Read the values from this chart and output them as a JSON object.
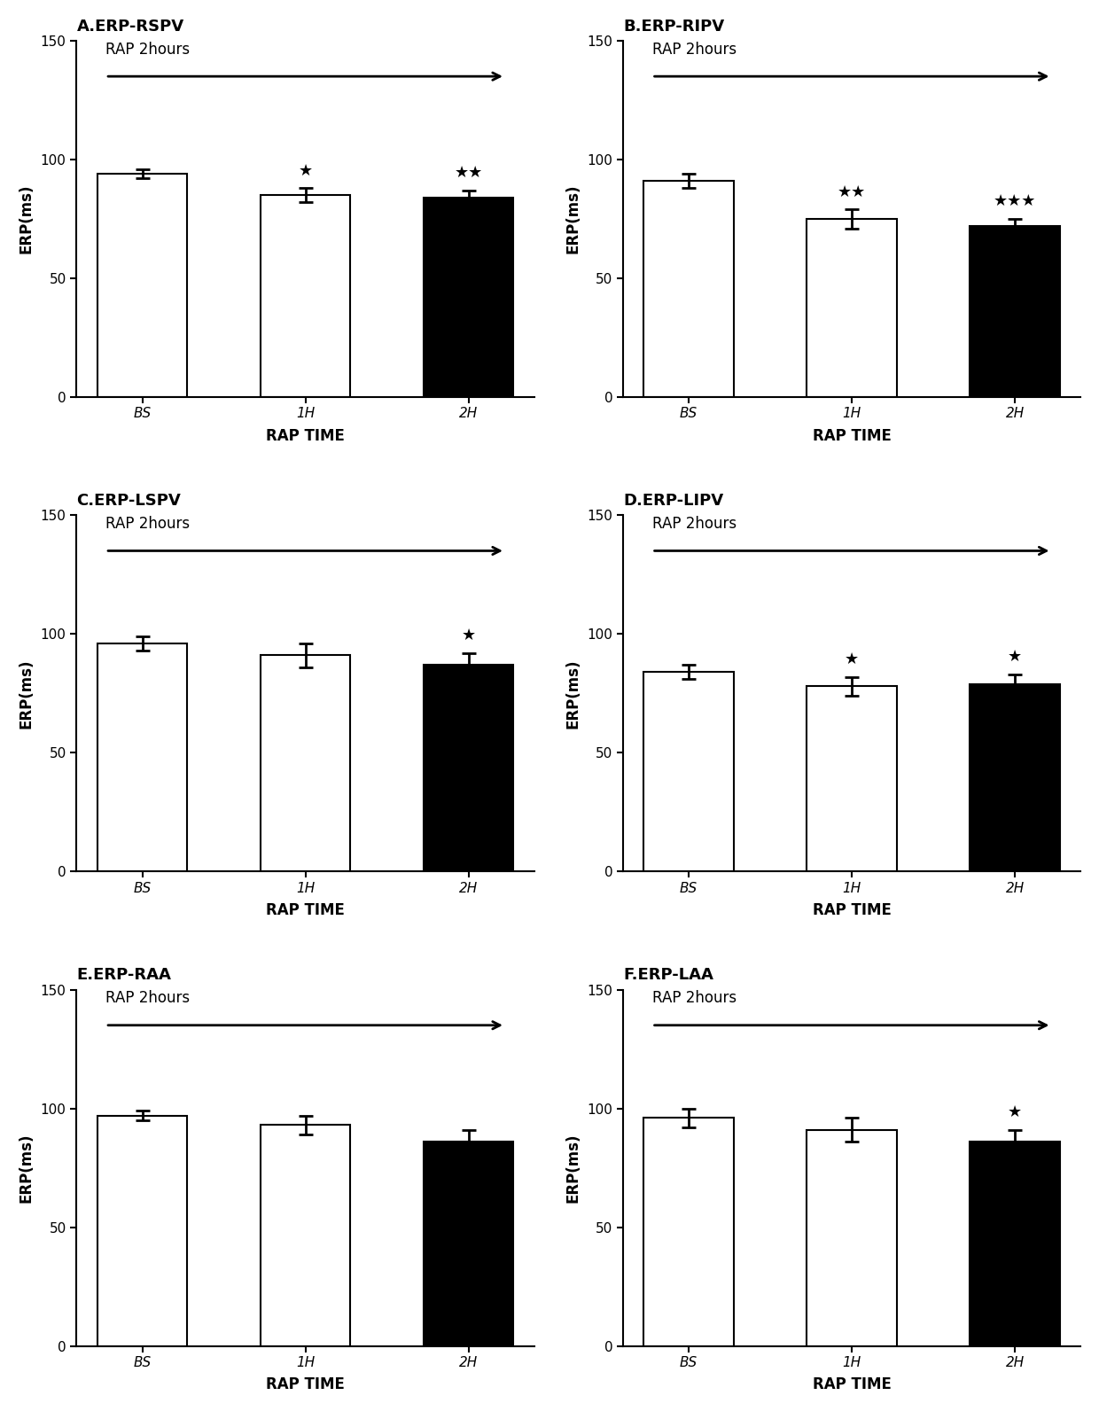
{
  "panels": [
    {
      "title": "A.ERP-RSPV",
      "values": [
        94,
        85,
        84
      ],
      "errors": [
        2,
        3,
        3
      ],
      "colors": [
        "white",
        "white",
        "black"
      ],
      "stars": [
        "",
        "★",
        "★★"
      ],
      "xlabel": "RAP TIME",
      "ylabel": "ERP(ms)",
      "ylim": [
        0,
        150
      ],
      "yticks": [
        0,
        50,
        100,
        150
      ],
      "xticks": [
        "BS",
        "1H",
        "2H"
      ]
    },
    {
      "title": "B.ERP-RIPV",
      "values": [
        91,
        75,
        72
      ],
      "errors": [
        3,
        4,
        3
      ],
      "colors": [
        "white",
        "white",
        "black"
      ],
      "stars": [
        "",
        "★★",
        "★★★"
      ],
      "xlabel": "RAP TIME",
      "ylabel": "ERP(ms)",
      "ylim": [
        0,
        150
      ],
      "yticks": [
        0,
        50,
        100,
        150
      ],
      "xticks": [
        "BS",
        "1H",
        "2H"
      ]
    },
    {
      "title": "C.ERP-LSPV",
      "values": [
        96,
        91,
        87
      ],
      "errors": [
        3,
        5,
        5
      ],
      "colors": [
        "white",
        "white",
        "black"
      ],
      "stars": [
        "",
        "",
        "★"
      ],
      "xlabel": "RAP TIME",
      "ylabel": "ERP(ms)",
      "ylim": [
        0,
        150
      ],
      "yticks": [
        0,
        50,
        100,
        150
      ],
      "xticks": [
        "BS",
        "1H",
        "2H"
      ]
    },
    {
      "title": "D.ERP-LIPV",
      "values": [
        84,
        78,
        79
      ],
      "errors": [
        3,
        4,
        4
      ],
      "colors": [
        "white",
        "white",
        "black"
      ],
      "stars": [
        "",
        "★",
        "★"
      ],
      "xlabel": "RAP TIME",
      "ylabel": "ERP(ms)",
      "ylim": [
        0,
        150
      ],
      "yticks": [
        0,
        50,
        100,
        150
      ],
      "xticks": [
        "BS",
        "1H",
        "2H"
      ]
    },
    {
      "title": "E.ERP-RAA",
      "values": [
        97,
        93,
        86
      ],
      "errors": [
        2,
        4,
        5
      ],
      "colors": [
        "white",
        "white",
        "black"
      ],
      "stars": [
        "",
        "",
        ""
      ],
      "xlabel": "RAP TIME",
      "ylabel": "ERP(ms)",
      "ylim": [
        0,
        150
      ],
      "yticks": [
        0,
        50,
        100,
        150
      ],
      "xticks": [
        "BS",
        "1H",
        "2H"
      ]
    },
    {
      "title": "F.ERP-LAA",
      "values": [
        96,
        91,
        86
      ],
      "errors": [
        4,
        5,
        5
      ],
      "colors": [
        "white",
        "white",
        "black"
      ],
      "stars": [
        "",
        "",
        "★"
      ],
      "xlabel": "RAP TIME",
      "ylabel": "ERP(ms)",
      "ylim": [
        0,
        150
      ],
      "yticks": [
        0,
        50,
        100,
        150
      ],
      "xticks": [
        "BS",
        "1H",
        "2H"
      ]
    }
  ],
  "arrow_text": "RAP 2hours",
  "bar_width": 0.55,
  "edgecolor": "black",
  "background_color": "white",
  "title_fontsize": 13,
  "label_fontsize": 12,
  "tick_fontsize": 11,
  "star_fontsize": 13,
  "arrow_text_fontsize": 12
}
